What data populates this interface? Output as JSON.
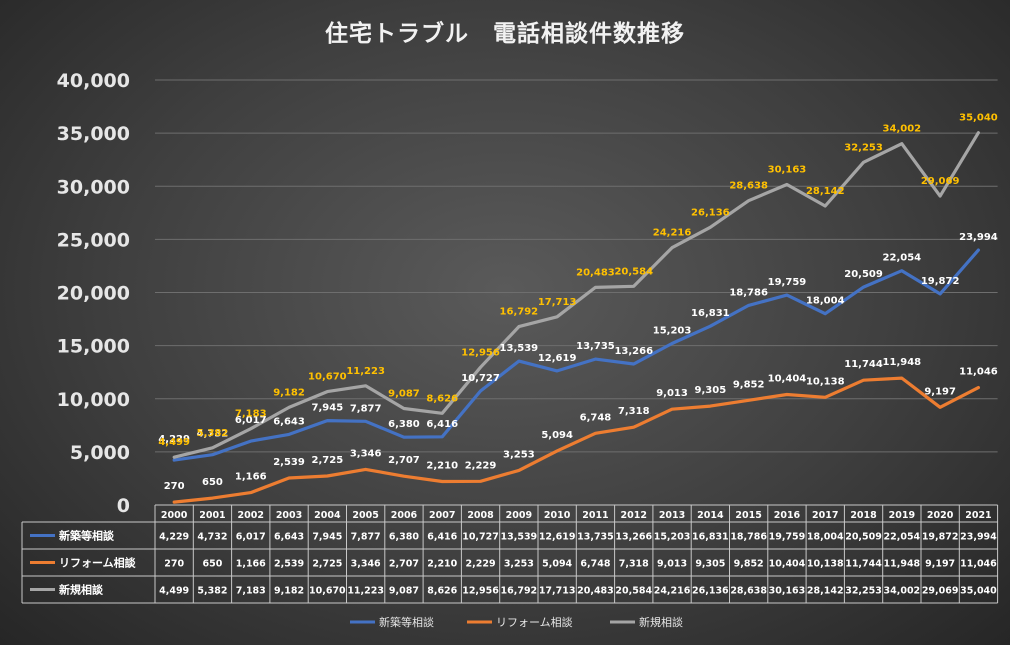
{
  "chart_data": {
    "type": "line",
    "title": "住宅トラブル　電話相談件数推移",
    "x": [
      "2000",
      "2001",
      "2002",
      "2003",
      "2004",
      "2005",
      "2006",
      "2007",
      "2008",
      "2009",
      "2010",
      "2011",
      "2012",
      "2013",
      "2014",
      "2015",
      "2016",
      "2017",
      "2018",
      "2019",
      "2020",
      "2021"
    ],
    "ylim": [
      0,
      40000
    ],
    "yticks": [
      "0",
      "5,000",
      "10,000",
      "15,000",
      "20,000",
      "25,000",
      "30,000",
      "35,000",
      "40,000"
    ],
    "grid": true,
    "legend": "bottom",
    "series": [
      {
        "name": "新築等相談",
        "color": "#4472c4",
        "label_color": "#ffffff",
        "values": [
          4229,
          4732,
          6017,
          6643,
          7945,
          7877,
          6380,
          6416,
          10727,
          13539,
          12619,
          13735,
          13266,
          15203,
          16831,
          18786,
          19759,
          18004,
          20509,
          22054,
          19872,
          23994
        ],
        "labels": [
          "4,229",
          "4,732",
          "6,017",
          "6,643",
          "7,945",
          "7,877",
          "6,380",
          "6,416",
          "10,727",
          "13,539",
          "12,619",
          "13,735",
          "13,266",
          "15,203",
          "16,831",
          "18,786",
          "19,759",
          "18,004",
          "20,509",
          "22,054",
          "19,872",
          "23,994"
        ]
      },
      {
        "name": "リフォーム相談",
        "color": "#ed7d31",
        "label_color": "#ffffff",
        "values": [
          270,
          650,
          1166,
          2539,
          2725,
          3346,
          2707,
          2210,
          2229,
          3253,
          5094,
          6748,
          7318,
          9013,
          9305,
          9852,
          10404,
          10138,
          11744,
          11948,
          9197,
          11046
        ],
        "labels": [
          "270",
          "650",
          "1,166",
          "2,539",
          "2,725",
          "3,346",
          "2,707",
          "2,210",
          "2,229",
          "3,253",
          "5,094",
          "6,748",
          "7,318",
          "9,013",
          "9,305",
          "9,852",
          "10,404",
          "10,138",
          "11,744",
          "11,948",
          "9,197",
          "11,046"
        ]
      },
      {
        "name": "新規相談",
        "color": "#a5a5a5",
        "label_color": "#ffc000",
        "values": [
          4499,
          5382,
          7183,
          9182,
          10670,
          11223,
          9087,
          8626,
          12956,
          16792,
          17713,
          20483,
          20584,
          24216,
          26136,
          28638,
          30163,
          28142,
          32253,
          34002,
          29069,
          35040
        ],
        "labels": [
          "4,499",
          "5,382",
          "7,183",
          "9,182",
          "10,670",
          "11,223",
          "9,087",
          "8,626",
          "12,956",
          "16,792",
          "17,713",
          "20,483",
          "20,584",
          "24,216",
          "26,136",
          "28,638",
          "30,163",
          "28,142",
          "32,253",
          "34,002",
          "29,069",
          "35,040"
        ]
      }
    ]
  }
}
